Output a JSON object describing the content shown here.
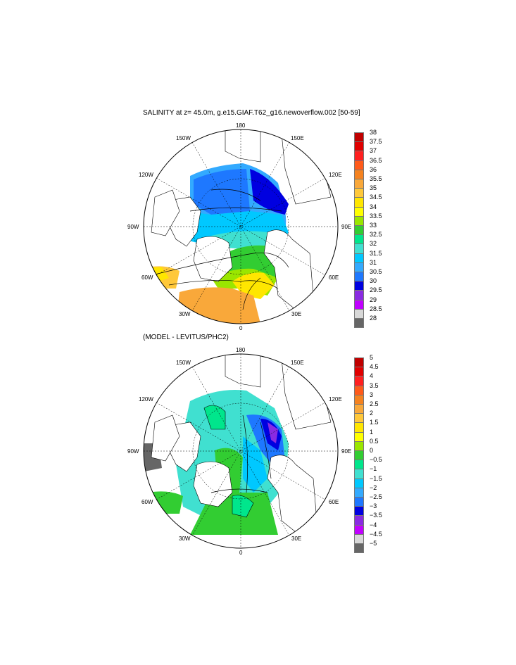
{
  "panels": [
    {
      "title": "SALINITY at z=  45.0m, g.e15.GIAF.T62_g16.newoverflow.002 [50-59]",
      "colorbar_labels": [
        "38",
        "37.5",
        "37",
        "36.5",
        "36",
        "35.5",
        "35",
        "34.5",
        "34",
        "33.5",
        "33",
        "32.5",
        "32",
        "31.5",
        "31",
        "30.5",
        "30",
        "29.5",
        "29",
        "28.5",
        "28"
      ],
      "colorbar_colors": [
        "#c00000",
        "#e00000",
        "#ff2020",
        "#ff5a1a",
        "#f5821f",
        "#f9a83a",
        "#ffc83a",
        "#ffe600",
        "#ffff00",
        "#9ae600",
        "#32cd32",
        "#00e68c",
        "#40e0d0",
        "#00c8ff",
        "#33aaff",
        "#1e78ff",
        "#0000e0",
        "#8a2be2",
        "#c000ff",
        "#d8d8d8",
        "#666666"
      ]
    },
    {
      "title": "(MODEL - LEVITUS/PHC2)",
      "colorbar_labels": [
        "5",
        "4.5",
        "4",
        "3.5",
        "3",
        "2.5",
        "2",
        "1.5",
        "1",
        "0.5",
        "0",
        "−0.5",
        "−1",
        "−1.5",
        "−2",
        "−2.5",
        "−3",
        "−3.5",
        "−4",
        "−4.5",
        "−5"
      ],
      "colorbar_colors": [
        "#c00000",
        "#e00000",
        "#ff2020",
        "#ff5a1a",
        "#f5821f",
        "#f9a83a",
        "#ffc83a",
        "#ffe600",
        "#ffff00",
        "#9ae600",
        "#32cd32",
        "#00e68c",
        "#40e0d0",
        "#00c8ff",
        "#33aaff",
        "#1e78ff",
        "#0000e0",
        "#8a2be2",
        "#c000ff",
        "#d8d8d8",
        "#666666"
      ]
    }
  ],
  "lon_labels": {
    "n180": "180",
    "n150e": "150E",
    "n120e": "120E",
    "n90e": "90E",
    "n60e": "60E",
    "n30e": "30E",
    "n0": "0",
    "n30w": "30W",
    "n60w": "60W",
    "n90w": "90W",
    "n120w": "120W",
    "n150w": "150W"
  }
}
